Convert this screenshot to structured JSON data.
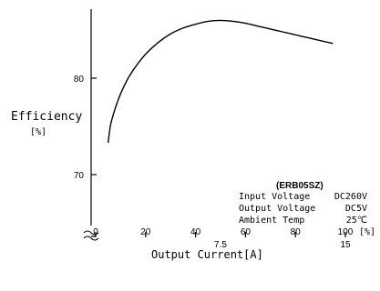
{
  "chart_data": {
    "type": "line",
    "xlabel": "Output Current[A]",
    "x_unit_label": "[%]",
    "ylabel": "Efficiency",
    "y_unit_label": "[%]",
    "x_ticks": [
      0,
      20,
      40,
      60,
      80,
      100
    ],
    "x_secondary_ticks": [
      {
        "at": 50,
        "label": "7.5"
      },
      {
        "at": 100,
        "label": "15"
      }
    ],
    "y_ticks": [
      70,
      80
    ],
    "xlim": [
      0,
      100
    ],
    "ylim": [
      62,
      92
    ],
    "y_axis_break": true,
    "series": [
      {
        "x": [
          5,
          6,
          8,
          10,
          13,
          16,
          20,
          25,
          30,
          35,
          40,
          45,
          50,
          55,
          60,
          65,
          70,
          75,
          80,
          85,
          90,
          95
        ],
        "y": [
          73.3,
          75.2,
          77.0,
          78.4,
          80.0,
          81.2,
          82.5,
          83.7,
          84.6,
          85.2,
          85.6,
          85.9,
          86.0,
          85.9,
          85.7,
          85.4,
          85.1,
          84.8,
          84.5,
          84.2,
          83.9,
          83.6
        ],
        "color": "#000000"
      }
    ],
    "annotation": {
      "model": "(ERB05SZ)",
      "rows": [
        {
          "label": "Input Voltage",
          "value": "DC260V"
        },
        {
          "label": "Output Voltage",
          "value": "DC5V"
        },
        {
          "label": "Ambient Temp",
          "value": "25℃"
        }
      ]
    }
  }
}
